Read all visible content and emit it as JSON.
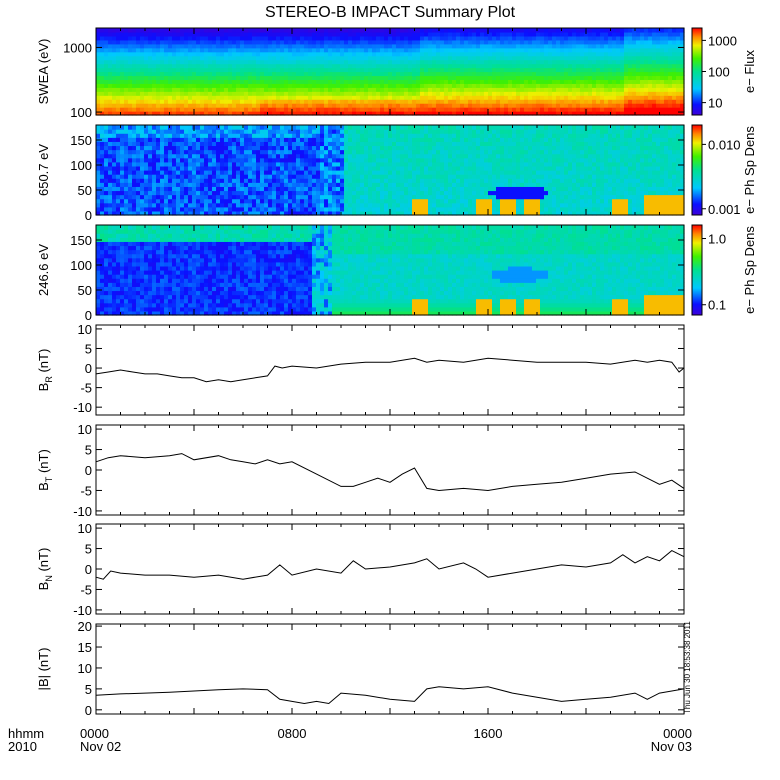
{
  "title": "STEREO-B IMPACT Summary Plot",
  "footer": {
    "left_top": "hhmm",
    "left_bottom": "2010",
    "ticks": [
      {
        "hour": 0,
        "top": "0000",
        "bottom": "Nov 02"
      },
      {
        "hour": 8,
        "top": "0800",
        "bottom": ""
      },
      {
        "hour": 16,
        "top": "1600",
        "bottom": ""
      },
      {
        "hour": 24,
        "top": "0000",
        "bottom": "Nov 03"
      }
    ]
  },
  "timestamp": "Thu Jun 30 18:53:38 2011",
  "colors": {
    "trace": "#000000",
    "frame": "#000000"
  },
  "chart_data": [
    {
      "type": "heatmap",
      "ylabel": "SWEA (eV)",
      "y_scale": "log",
      "ylim": [
        90,
        2000
      ],
      "yticks": [
        "100",
        "1000"
      ],
      "ytick_values": [
        100,
        1000
      ],
      "colorbar_label": "e− Flux",
      "colorbar_scale": "log",
      "colorbar_ticks": [
        "10",
        "100",
        "1000"
      ],
      "colorbar_tick_values": [
        10,
        100,
        1000
      ],
      "colorbar_range": [
        4,
        2500
      ],
      "colormap": "rainbow"
    },
    {
      "type": "heatmap",
      "ylabel": "650.7 eV",
      "ylim": [
        0,
        180
      ],
      "yticks": [
        "0",
        "50",
        "100",
        "150"
      ],
      "ytick_values": [
        0,
        50,
        100,
        150
      ],
      "colorbar_label": "e− Ph Sp Dens",
      "colorbar_scale": "log",
      "colorbar_ticks": [
        "0.001",
        "0.010"
      ],
      "colorbar_tick_values": [
        0.001,
        0.01
      ],
      "colorbar_range": [
        0.0008,
        0.02
      ],
      "colormap": "rainbow"
    },
    {
      "type": "heatmap",
      "ylabel": "246.6 eV",
      "ylim": [
        0,
        180
      ],
      "yticks": [
        "0",
        "50",
        "100",
        "150"
      ],
      "ytick_values": [
        0,
        50,
        100,
        150
      ],
      "colorbar_label": "e− Ph Sp Dens",
      "colorbar_scale": "log",
      "colorbar_ticks": [
        "0.1",
        "1.0"
      ],
      "colorbar_tick_values": [
        0.1,
        1.0
      ],
      "colorbar_range": [
        0.07,
        1.6
      ],
      "colormap": "rainbow"
    },
    {
      "type": "line",
      "ylabel_main": "B",
      "ylabel_sub": "R",
      "ylabel_unit": " (nT)",
      "ylim": [
        -12,
        11
      ],
      "yticks": [
        "-10",
        "-5",
        "0",
        "5",
        "10"
      ],
      "ytick_values": [
        -10,
        -5,
        0,
        5,
        10
      ],
      "x_hours": [
        0,
        0.5,
        1,
        1.5,
        2,
        2.5,
        3,
        3.5,
        4,
        4.5,
        5,
        5.5,
        6,
        6.5,
        7,
        7.3,
        7.6,
        8,
        9,
        10,
        11,
        12,
        13,
        13.5,
        14,
        15,
        16,
        17,
        18,
        19,
        20,
        21,
        22,
        22.5,
        23,
        23.5,
        23.8,
        24
      ],
      "values": [
        -1.5,
        -1.0,
        -0.5,
        -1.0,
        -1.5,
        -1.5,
        -2.0,
        -2.5,
        -2.5,
        -3.5,
        -3.0,
        -3.5,
        -3.0,
        -2.5,
        -2.0,
        0.5,
        0.0,
        0.5,
        0.0,
        1.0,
        1.5,
        1.5,
        2.5,
        1.5,
        2.0,
        1.5,
        2.5,
        2.0,
        1.5,
        1.5,
        1.5,
        1.0,
        2.0,
        1.5,
        2.0,
        1.5,
        -1.0,
        0.0
      ]
    },
    {
      "type": "line",
      "ylabel_main": "B",
      "ylabel_sub": "T",
      "ylabel_unit": " (nT)",
      "ylim": [
        -11,
        11
      ],
      "yticks": [
        "-10",
        "-5",
        "0",
        "5",
        "10"
      ],
      "ytick_values": [
        -10,
        -5,
        0,
        5,
        10
      ],
      "x_hours": [
        0,
        0.5,
        1,
        2,
        3,
        3.5,
        4,
        5,
        5.5,
        6,
        6.5,
        7,
        7.5,
        8,
        9,
        10,
        10.5,
        11,
        11.5,
        12,
        12.5,
        13,
        13.5,
        14,
        15,
        16,
        17,
        18,
        19,
        20,
        21,
        22,
        22.5,
        23,
        23.5,
        24
      ],
      "values": [
        2.0,
        3.0,
        3.5,
        3.0,
        3.5,
        4.0,
        2.5,
        3.5,
        2.5,
        2.0,
        1.5,
        2.5,
        1.5,
        2.0,
        -1.0,
        -4.0,
        -4.0,
        -3.0,
        -2.0,
        -3.0,
        -1.0,
        0.5,
        -4.5,
        -5.0,
        -4.5,
        -5.0,
        -4.0,
        -3.5,
        -3.0,
        -2.0,
        -1.0,
        -0.5,
        -2.0,
        -3.5,
        -2.5,
        -4.5
      ]
    },
    {
      "type": "line",
      "ylabel_main": "B",
      "ylabel_sub": "N",
      "ylabel_unit": " (nT)",
      "ylim": [
        -11,
        11
      ],
      "yticks": [
        "-10",
        "-5",
        "0",
        "5",
        "10"
      ],
      "ytick_values": [
        -10,
        -5,
        0,
        5,
        10
      ],
      "x_hours": [
        0,
        0.3,
        0.6,
        1,
        2,
        3,
        4,
        5,
        6,
        7,
        7.5,
        8,
        9,
        10,
        10.5,
        11,
        12,
        13,
        13.5,
        14,
        15,
        15.5,
        16,
        17,
        18,
        19,
        20,
        21,
        21.5,
        22,
        22.5,
        23,
        23.5,
        24
      ],
      "values": [
        -2.0,
        -2.5,
        -0.5,
        -1.0,
        -1.5,
        -1.5,
        -2.0,
        -1.5,
        -2.5,
        -1.5,
        1.0,
        -1.5,
        0.0,
        -1.0,
        2.0,
        0.0,
        0.5,
        1.5,
        2.5,
        0.0,
        1.5,
        0.0,
        -2.0,
        -1.0,
        0.0,
        1.0,
        0.5,
        1.5,
        3.5,
        1.5,
        3.0,
        2.0,
        4.5,
        3.0
      ]
    },
    {
      "type": "line",
      "ylabel": "|B| (nT)",
      "ylim": [
        -1,
        20.5
      ],
      "yticks": [
        "0",
        "5",
        "10",
        "15",
        "20"
      ],
      "ytick_values": [
        0,
        5,
        10,
        15,
        20
      ],
      "x_hours": [
        0,
        1,
        2,
        3,
        4,
        5,
        6,
        7,
        7.5,
        8,
        8.5,
        9,
        9.5,
        10,
        11,
        12,
        13,
        13.5,
        14,
        15,
        16,
        17,
        18,
        19,
        20,
        21,
        22,
        22.5,
        23,
        23.5,
        24
      ],
      "values": [
        3.5,
        3.8,
        4.0,
        4.2,
        4.5,
        4.8,
        5.0,
        4.8,
        2.5,
        2.0,
        1.5,
        2.0,
        1.5,
        4.0,
        3.5,
        2.5,
        2.0,
        5.0,
        5.5,
        5.0,
        5.5,
        4.0,
        3.0,
        2.0,
        2.5,
        3.0,
        4.0,
        2.5,
        4.0,
        4.5,
        5.0
      ]
    }
  ]
}
